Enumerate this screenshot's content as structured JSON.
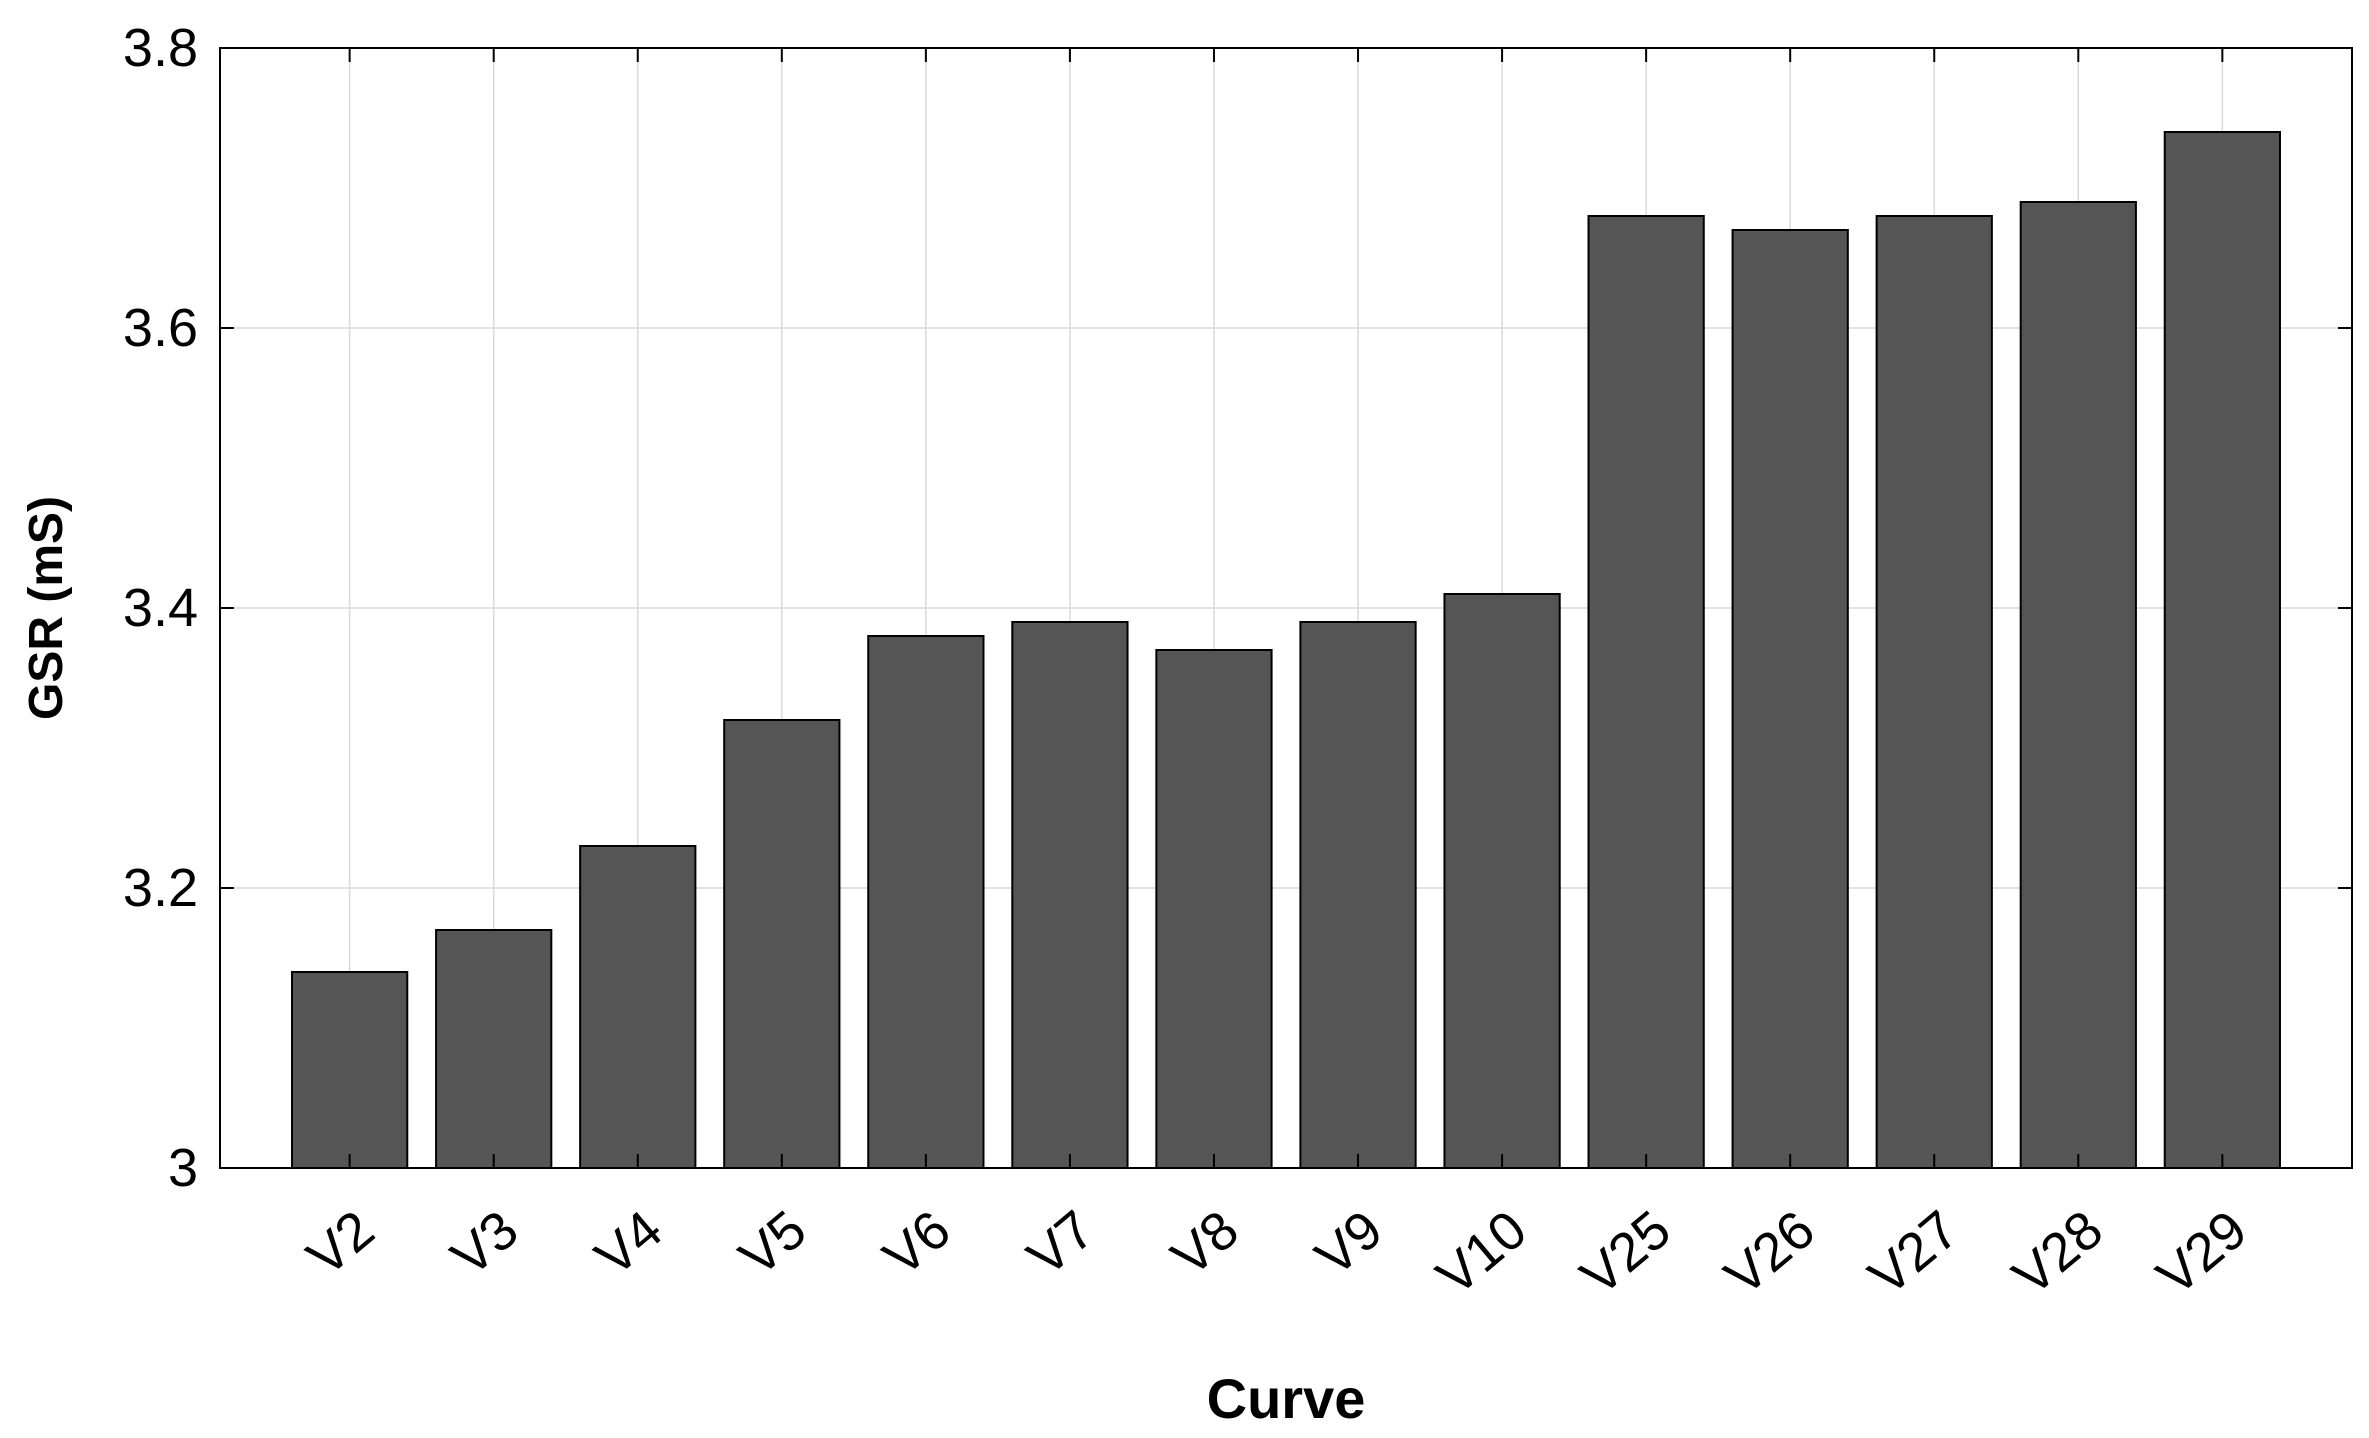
{
  "chart_data": {
    "type": "bar",
    "title": "",
    "xlabel": "Curve",
    "ylabel": "GSR (mS)",
    "categories": [
      "V2",
      "V3",
      "V4",
      "V5",
      "V6",
      "V7",
      "V8",
      "V9",
      "V10",
      "V25",
      "V26",
      "V27",
      "V28",
      "V29"
    ],
    "values": [
      3.14,
      3.17,
      3.23,
      3.32,
      3.38,
      3.39,
      3.37,
      3.39,
      3.41,
      3.68,
      3.67,
      3.68,
      3.69,
      3.74
    ],
    "ylim": [
      3.0,
      3.8
    ],
    "yticks": [
      3,
      3.2,
      3.4,
      3.6,
      3.8
    ],
    "ytick_labels": [
      "3",
      "3.2",
      "3.4",
      "3.6",
      "3.8"
    ],
    "grid": true,
    "legend": false,
    "bar_color": "#555555",
    "bar_edge_color": "#000000",
    "grid_color": "#d9d9d9"
  }
}
